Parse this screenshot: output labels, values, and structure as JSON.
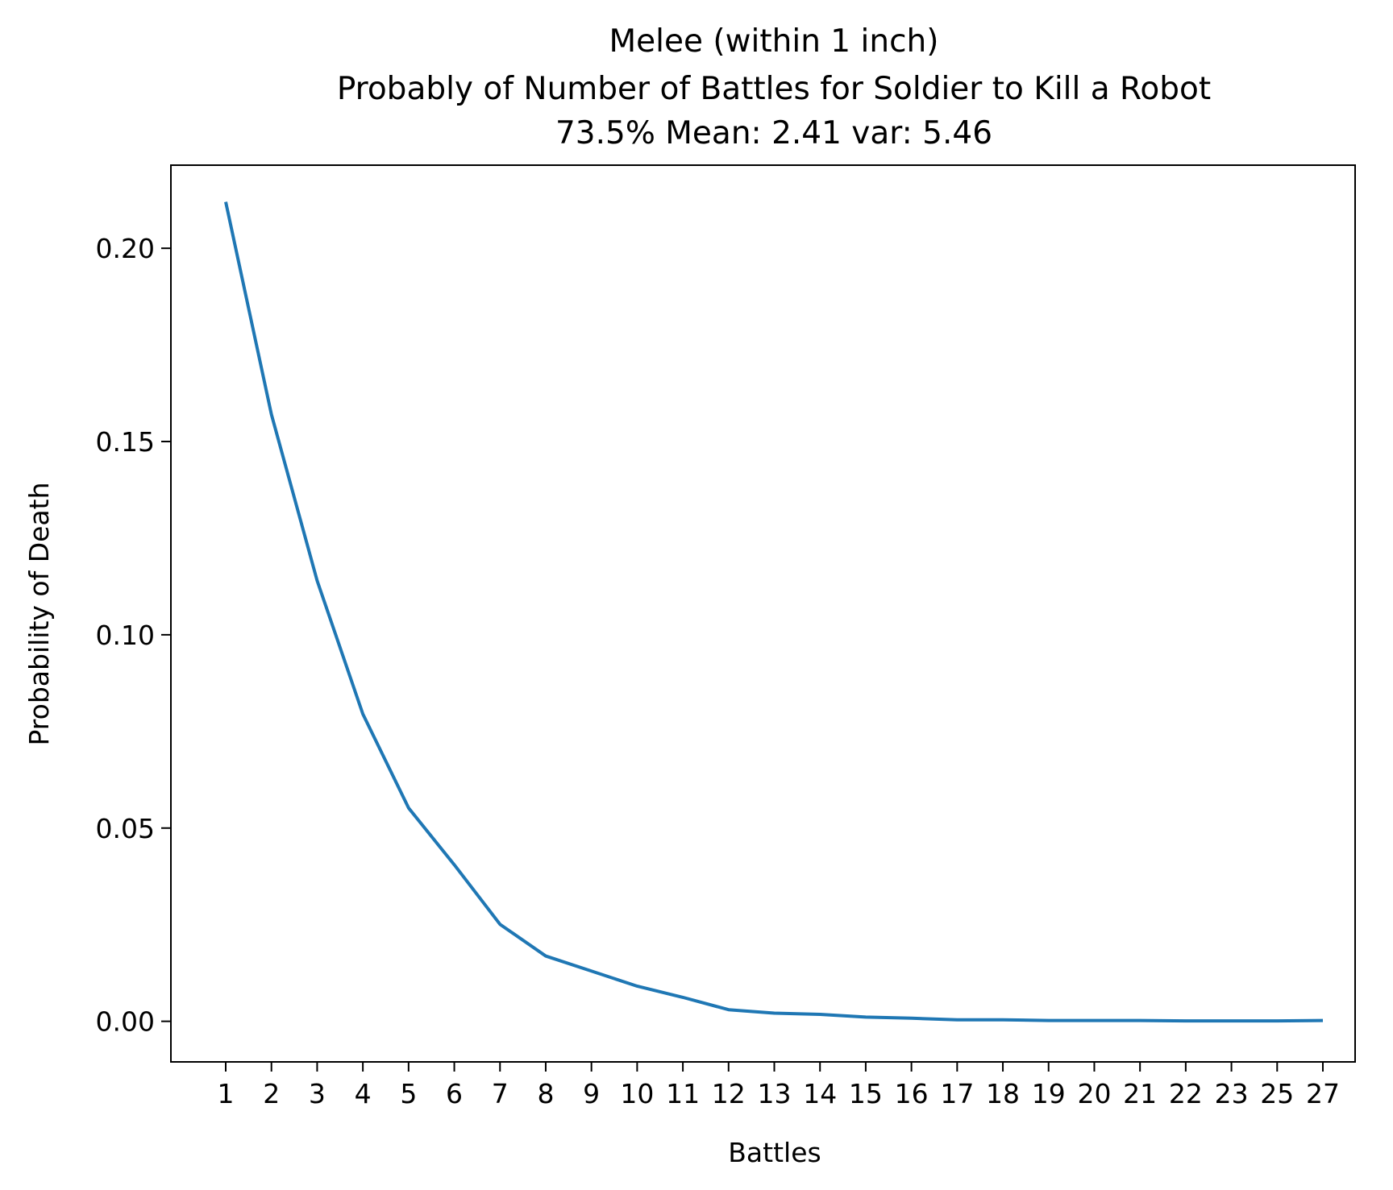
{
  "chart_data": {
    "type": "line",
    "title_lines": [
      "Melee (within 1 inch)",
      "Probably of Number of Battles for Soldier to Kill a Robot",
      "73.5% Mean: 2.41 var: 5.46"
    ],
    "xlabel": "Battles",
    "ylabel": "Probability of Death",
    "x_ticks": [
      "1",
      "2",
      "3",
      "4",
      "5",
      "6",
      "7",
      "8",
      "9",
      "10",
      "11",
      "12",
      "13",
      "14",
      "15",
      "16",
      "17",
      "18",
      "19",
      "20",
      "21",
      "22",
      "23",
      "25",
      "27"
    ],
    "y_ticks": [
      "0.00",
      "0.05",
      "0.10",
      "0.15",
      "0.20"
    ],
    "y_tick_values": [
      0,
      0.05,
      0.1,
      0.15,
      0.2
    ],
    "ylim": [
      -0.0105,
      0.2215
    ],
    "grid": false,
    "line_color": "#1f77b4",
    "series": [
      {
        "values": [
          0.212,
          0.157,
          0.114,
          0.0795,
          0.0552,
          0.0405,
          0.0251,
          0.0169,
          0.013,
          0.0091,
          0.0062,
          0.003,
          0.0021,
          0.0018,
          0.0011,
          0.0008,
          0.0004,
          0.0004,
          0.0002,
          0.0002,
          0.0002,
          0.0001,
          0.0001,
          0.0001,
          0.0002
        ]
      }
    ]
  }
}
